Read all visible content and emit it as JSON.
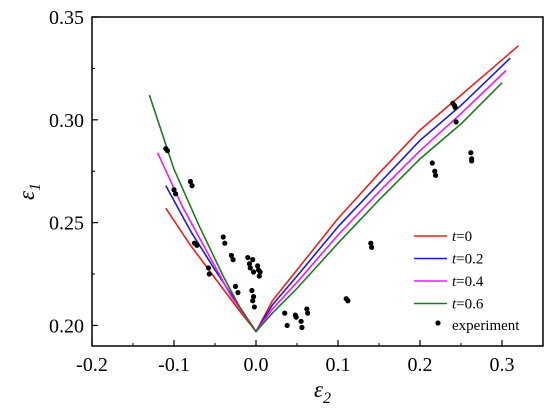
{
  "chart_data": {
    "type": "line",
    "xlabel": "ε2",
    "ylabel": "ε1",
    "x_axis_title": {
      "symbol": "ε",
      "subscript": "2"
    },
    "y_axis_title": {
      "symbol": "ε",
      "subscript": "1"
    },
    "xlim": [
      -0.2,
      0.35
    ],
    "ylim": [
      0.19,
      0.35
    ],
    "x_ticks": [
      -0.2,
      -0.1,
      0.0,
      0.1,
      0.2,
      0.3
    ],
    "x_tick_labels": [
      "-0.2",
      "-0.1",
      "0.0",
      "0.1",
      "0.2",
      "0.3"
    ],
    "y_ticks": [
      0.2,
      0.25,
      0.3,
      0.35
    ],
    "y_tick_labels": [
      "0.20",
      "0.25",
      "0.30",
      "0.35"
    ],
    "grid": false,
    "legend_position": "bottom-right",
    "series": [
      {
        "name": "t=0",
        "name_italic": "t",
        "name_rest": "=0",
        "color": "#e8201c",
        "points": [
          [
            -0.11,
            0.257
          ],
          [
            -0.08,
            0.239
          ],
          [
            -0.05,
            0.223
          ],
          [
            -0.02,
            0.207
          ],
          [
            0.0,
            0.197
          ],
          [
            0.02,
            0.212
          ],
          [
            0.05,
            0.227
          ],
          [
            0.1,
            0.252
          ],
          [
            0.15,
            0.274
          ],
          [
            0.2,
            0.295
          ],
          [
            0.25,
            0.312
          ],
          [
            0.32,
            0.336
          ]
        ]
      },
      {
        "name": "t=0.2",
        "name_italic": "t",
        "name_rest": "=0.2",
        "color": "#1c1cd6",
        "points": [
          [
            -0.11,
            0.268
          ],
          [
            -0.08,
            0.246
          ],
          [
            -0.05,
            0.227
          ],
          [
            -0.02,
            0.209
          ],
          [
            0.0,
            0.197
          ],
          [
            0.02,
            0.21
          ],
          [
            0.05,
            0.224
          ],
          [
            0.1,
            0.248
          ],
          [
            0.15,
            0.269
          ],
          [
            0.2,
            0.29
          ],
          [
            0.25,
            0.307
          ],
          [
            0.31,
            0.33
          ]
        ]
      },
      {
        "name": "t=0.4",
        "name_italic": "t",
        "name_rest": "=0.4",
        "color": "#f018f0",
        "points": [
          [
            -0.12,
            0.284
          ],
          [
            -0.09,
            0.258
          ],
          [
            -0.06,
            0.236
          ],
          [
            -0.03,
            0.214
          ],
          [
            0.0,
            0.197
          ],
          [
            0.02,
            0.208
          ],
          [
            0.05,
            0.221
          ],
          [
            0.1,
            0.244
          ],
          [
            0.15,
            0.265
          ],
          [
            0.2,
            0.285
          ],
          [
            0.25,
            0.303
          ],
          [
            0.305,
            0.324
          ]
        ]
      },
      {
        "name": "t=0.6",
        "name_italic": "t",
        "name_rest": "=0.6",
        "color": "#1f7a1f",
        "points": [
          [
            -0.13,
            0.312
          ],
          [
            -0.1,
            0.276
          ],
          [
            -0.07,
            0.249
          ],
          [
            -0.04,
            0.224
          ],
          [
            -0.02,
            0.209
          ],
          [
            0.0,
            0.197
          ],
          [
            0.02,
            0.206
          ],
          [
            0.05,
            0.218
          ],
          [
            0.1,
            0.24
          ],
          [
            0.15,
            0.261
          ],
          [
            0.2,
            0.281
          ],
          [
            0.25,
            0.298
          ],
          [
            0.3,
            0.318
          ]
        ]
      }
    ],
    "experiment": {
      "name": "experiment",
      "color": "#000000",
      "points": [
        [
          -0.11,
          0.286
        ],
        [
          -0.108,
          0.285
        ],
        [
          -0.1,
          0.266
        ],
        [
          -0.098,
          0.264
        ],
        [
          -0.08,
          0.27
        ],
        [
          -0.078,
          0.268
        ],
        [
          -0.075,
          0.24
        ],
        [
          -0.072,
          0.239
        ],
        [
          -0.058,
          0.228
        ],
        [
          -0.057,
          0.225
        ],
        [
          -0.04,
          0.243
        ],
        [
          -0.038,
          0.24
        ],
        [
          -0.03,
          0.234
        ],
        [
          -0.028,
          0.232
        ],
        [
          -0.025,
          0.219
        ],
        [
          -0.022,
          0.216
        ],
        [
          -0.01,
          0.233
        ],
        [
          -0.008,
          0.23
        ],
        [
          -0.007,
          0.228
        ],
        [
          -0.004,
          0.232
        ],
        [
          -0.003,
          0.226
        ],
        [
          -0.005,
          0.217
        ],
        [
          -0.003,
          0.214
        ],
        [
          -0.004,
          0.212
        ],
        [
          -0.002,
          0.209
        ],
        [
          0.002,
          0.229
        ],
        [
          0.003,
          0.227
        ],
        [
          0.005,
          0.226
        ],
        [
          0.004,
          0.224
        ],
        [
          0.035,
          0.206
        ],
        [
          0.038,
          0.2
        ],
        [
          0.048,
          0.205
        ],
        [
          0.049,
          0.204
        ],
        [
          0.055,
          0.202
        ],
        [
          0.056,
          0.199
        ],
        [
          0.062,
          0.208
        ],
        [
          0.063,
          0.206
        ],
        [
          0.11,
          0.213
        ],
        [
          0.112,
          0.212
        ],
        [
          0.14,
          0.24
        ],
        [
          0.141,
          0.238
        ],
        [
          0.215,
          0.279
        ],
        [
          0.218,
          0.275
        ],
        [
          0.219,
          0.273
        ],
        [
          0.24,
          0.308
        ],
        [
          0.242,
          0.307
        ],
        [
          0.243,
          0.306
        ],
        [
          0.244,
          0.299
        ],
        [
          0.262,
          0.284
        ],
        [
          0.263,
          0.281
        ],
        [
          0.263,
          0.28
        ]
      ]
    }
  }
}
